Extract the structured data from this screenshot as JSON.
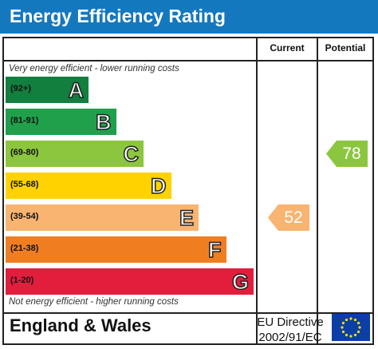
{
  "title": "Energy Efficiency Rating",
  "columns": {
    "current": "Current",
    "potential": "Potential"
  },
  "notes": {
    "top": "Very energy efficient - lower running costs",
    "bottom": "Not energy efficient - higher running costs"
  },
  "footer": {
    "region": "England & Wales",
    "directive_line1": "EU Directive",
    "directive_line2": "2002/91/EC",
    "flag_icon": "eu-flag-icon"
  },
  "chart_data": {
    "type": "bar",
    "title": "Energy Efficiency Rating",
    "categories": [
      "A",
      "B",
      "C",
      "D",
      "E",
      "F",
      "G"
    ],
    "bands": [
      {
        "letter": "A",
        "range": "(92+)",
        "min": 92,
        "max": 100,
        "color": "#127f3e"
      },
      {
        "letter": "B",
        "range": "(81-91)",
        "min": 81,
        "max": 91,
        "color": "#20a04b"
      },
      {
        "letter": "C",
        "range": "(69-80)",
        "min": 69,
        "max": 80,
        "color": "#8cc63f"
      },
      {
        "letter": "D",
        "range": "(55-68)",
        "min": 55,
        "max": 68,
        "color": "#ffd200"
      },
      {
        "letter": "E",
        "range": "(39-54)",
        "min": 39,
        "max": 54,
        "color": "#f9b471"
      },
      {
        "letter": "F",
        "range": "(21-38)",
        "min": 21,
        "max": 38,
        "color": "#f07e21"
      },
      {
        "letter": "G",
        "range": "(1-20)",
        "min": 1,
        "max": 20,
        "color": "#e31d3c"
      }
    ],
    "current": {
      "value": 52,
      "label": "52",
      "band": "E",
      "color": "#f9b471"
    },
    "potential": {
      "value": 78,
      "label": "78",
      "band": "C",
      "color": "#8cc63f"
    }
  }
}
